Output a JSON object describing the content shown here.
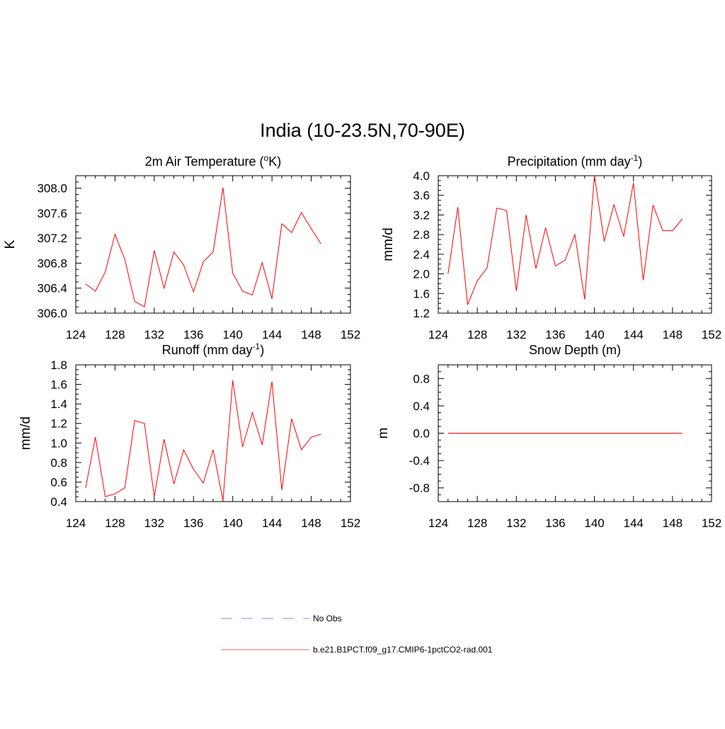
{
  "figure": {
    "title": "India (10-23.5N,70-90E)"
  },
  "legend": {
    "placement": "bottom-center",
    "items": [
      {
        "label": "No Obs",
        "color": "#a0a0f0",
        "style": "dashed"
      },
      {
        "label": "b.e21.B1PCT.f09_g17.CMIP6-1pctCO2-rad.001",
        "color": "#f08080",
        "style": "solid"
      }
    ]
  },
  "chart_data": [
    {
      "type": "line",
      "title_main": "2m Air Temperature (",
      "title_sup": "o",
      "title_tail": "K)",
      "ylabel": "K",
      "xlim": [
        124,
        152
      ],
      "ylim": [
        306.0,
        308.2
      ],
      "xticks": [
        124,
        128,
        132,
        136,
        140,
        144,
        148,
        152
      ],
      "yticks": [
        306.0,
        306.4,
        306.8,
        307.2,
        307.6,
        308.0
      ],
      "ytick_labels": [
        "306.0",
        "306.4",
        "306.8",
        "307.2",
        "307.6",
        "308.0"
      ],
      "grid": false,
      "series": [
        {
          "color": "#ff0000",
          "x": [
            125,
            126,
            127,
            128,
            129,
            130,
            131,
            132,
            133,
            134,
            135,
            136,
            137,
            138,
            139,
            140,
            141,
            142,
            143,
            144,
            145,
            146,
            147,
            148,
            149
          ],
          "y": [
            306.47,
            306.35,
            306.66,
            307.26,
            306.86,
            306.19,
            306.1,
            307.0,
            306.4,
            306.98,
            306.77,
            306.34,
            306.82,
            306.98,
            308.01,
            306.64,
            306.35,
            306.29,
            306.81,
            306.23,
            307.43,
            307.29,
            307.61,
            307.35,
            307.11
          ]
        }
      ]
    },
    {
      "type": "line",
      "title_main": "Precipitation (mm day",
      "title_sup": "-1",
      "title_tail": ")",
      "ylabel": "mm/d",
      "xlim": [
        124,
        152
      ],
      "ylim": [
        1.2,
        4.0
      ],
      "xticks": [
        124,
        128,
        132,
        136,
        140,
        144,
        148,
        152
      ],
      "yticks": [
        1.2,
        1.6,
        2.0,
        2.4,
        2.8,
        3.2,
        3.6,
        4.0
      ],
      "ytick_labels": [
        "1.2",
        "1.6",
        "2.0",
        "2.4",
        "2.8",
        "3.2",
        "3.6",
        "4.0"
      ],
      "grid": false,
      "series": [
        {
          "color": "#ff0000",
          "x": [
            125,
            126,
            127,
            128,
            129,
            130,
            131,
            132,
            133,
            134,
            135,
            136,
            137,
            138,
            139,
            140,
            141,
            142,
            143,
            144,
            145,
            146,
            147,
            148,
            149
          ],
          "y": [
            2.0,
            3.36,
            1.37,
            1.86,
            2.12,
            3.34,
            3.29,
            1.65,
            3.2,
            2.11,
            2.94,
            2.16,
            2.28,
            2.8,
            1.48,
            4.0,
            2.66,
            3.41,
            2.76,
            3.85,
            1.87,
            3.4,
            2.88,
            2.88,
            3.12
          ]
        }
      ]
    },
    {
      "type": "line",
      "title_main": "Runoff (mm day",
      "title_sup": "-1",
      "title_tail": ")",
      "ylabel": "mm/d",
      "xlim": [
        124,
        152
      ],
      "ylim": [
        0.4,
        1.8
      ],
      "xticks": [
        124,
        128,
        132,
        136,
        140,
        144,
        148,
        152
      ],
      "yticks": [
        0.4,
        0.6,
        0.8,
        1.0,
        1.2,
        1.4,
        1.6,
        1.8
      ],
      "ytick_labels": [
        "0.4",
        "0.6",
        "0.8",
        "1.0",
        "1.2",
        "1.4",
        "1.6",
        "1.8"
      ],
      "grid": false,
      "series": [
        {
          "color": "#ff0000",
          "x": [
            125,
            126,
            127,
            128,
            129,
            130,
            131,
            132,
            133,
            134,
            135,
            136,
            137,
            138,
            139,
            140,
            141,
            142,
            143,
            144,
            145,
            146,
            147,
            148,
            149
          ],
          "y": [
            0.54,
            1.06,
            0.45,
            0.48,
            0.54,
            1.23,
            1.2,
            0.45,
            1.04,
            0.58,
            0.93,
            0.73,
            0.59,
            0.93,
            0.41,
            1.64,
            0.96,
            1.31,
            0.98,
            1.63,
            0.52,
            1.25,
            0.93,
            1.06,
            1.09
          ]
        }
      ]
    },
    {
      "type": "line",
      "title_main": "Snow Depth (m)",
      "title_sup": "",
      "title_tail": "",
      "ylabel": "m",
      "xlim": [
        124,
        152
      ],
      "ylim": [
        -1.0,
        1.0
      ],
      "xticks": [
        124,
        128,
        132,
        136,
        140,
        144,
        148,
        152
      ],
      "yticks": [
        -0.8,
        -0.4,
        0.0,
        0.4,
        0.8
      ],
      "ytick_labels": [
        "-0.8",
        "-0.4",
        "0.0",
        "0.4",
        "0.8"
      ],
      "grid": false,
      "series": [
        {
          "color": "#ff0000",
          "x": [
            125,
            126,
            127,
            128,
            129,
            130,
            131,
            132,
            133,
            134,
            135,
            136,
            137,
            138,
            139,
            140,
            141,
            142,
            143,
            144,
            145,
            146,
            147,
            148,
            149
          ],
          "y": [
            0,
            0,
            0,
            0,
            0,
            0,
            0,
            0,
            0,
            0,
            0,
            0,
            0,
            0,
            0,
            0,
            0,
            0,
            0,
            0,
            0,
            0,
            0,
            0,
            0
          ]
        }
      ]
    }
  ]
}
